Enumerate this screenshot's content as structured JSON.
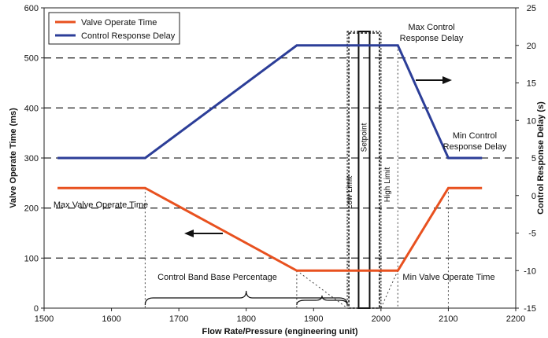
{
  "chart_data": {
    "type": "line",
    "xlabel": "Flow Rate/Pressure (engineering unit)",
    "ylabel": "Valve Operate Time (ms)",
    "y2label": "Control Response Delay (s)",
    "xlim": [
      1500,
      2200
    ],
    "ylim": [
      0,
      600
    ],
    "y2lim": [
      -15,
      25
    ],
    "x_ticks": [
      "1500",
      "1600",
      "1700",
      "1800",
      "1900",
      "2000",
      "2100",
      "2200"
    ],
    "y_ticks": [
      "0",
      "100",
      "200",
      "300",
      "400",
      "500",
      "600"
    ],
    "y2_ticks": [
      "-15",
      "-10",
      "-5",
      "0",
      "5",
      "10",
      "15",
      "20",
      "25"
    ],
    "grid": "horizontal dashed",
    "legend_position": "top-left",
    "series": [
      {
        "name": "Valve Operate Time",
        "color": "#e8511f",
        "axis": "left",
        "points": [
          [
            1520,
            240
          ],
          [
            1650,
            240
          ],
          [
            1875,
            75
          ],
          [
            2025,
            75
          ],
          [
            2100,
            240
          ],
          [
            2150,
            240
          ]
        ]
      },
      {
        "name": "Control Response Delay",
        "color": "#2c3e98",
        "axis": "right",
        "points": [
          [
            1520,
            5
          ],
          [
            1650,
            5
          ],
          [
            1875,
            20
          ],
          [
            2025,
            20
          ],
          [
            2100,
            5
          ],
          [
            2150,
            5
          ]
        ]
      }
    ],
    "vertical_lines": [
      {
        "label": "Low Limit",
        "x": 1950
      },
      {
        "label": "Setpoint",
        "x": 1975
      },
      {
        "label": "High Limit",
        "x": 2000
      }
    ],
    "annotations": {
      "max_control": [
        "Max Control",
        "Response Delay"
      ],
      "min_control": [
        "Min Control",
        "Response Delay"
      ],
      "max_valve": "Max Valve Operate Time",
      "min_valve": "Min Valve Operate Time",
      "control_band": "Control Band Base Percentage"
    }
  }
}
